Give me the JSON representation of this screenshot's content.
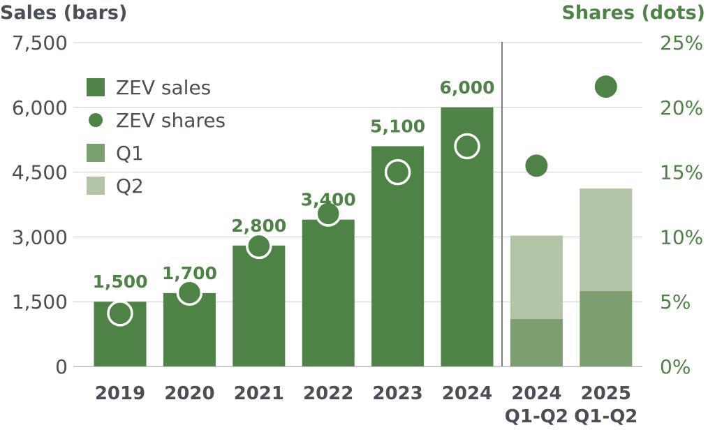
{
  "chart_data": {
    "type": "bar",
    "ylabel_left": "Sales (bars)",
    "ylabel_right": "Shares (dots)",
    "y_left_ticks": [
      "0",
      "1,500",
      "3,000",
      "4,500",
      "6,000",
      "7,500"
    ],
    "y_right_ticks": [
      "0%",
      "5%",
      "10%",
      "15%",
      "20%",
      "25%"
    ],
    "ylim_left": [
      0,
      7500
    ],
    "ylim_right": [
      0,
      25
    ],
    "categories": [
      {
        "line1": "2019",
        "line2": ""
      },
      {
        "line1": "2020",
        "line2": ""
      },
      {
        "line1": "2021",
        "line2": ""
      },
      {
        "line1": "2022",
        "line2": ""
      },
      {
        "line1": "2023",
        "line2": ""
      },
      {
        "line1": "2024",
        "line2": ""
      },
      {
        "line1": "2024",
        "line2": "Q1-Q2"
      },
      {
        "line1": "2025",
        "line2": "Q1-Q2"
      }
    ],
    "sales": [
      1500,
      1700,
      2800,
      3400,
      5100,
      6000,
      null,
      null
    ],
    "sales_labels": [
      "1,500",
      "1,700",
      "2,800",
      "3,400",
      "5,100",
      "6,000",
      "",
      ""
    ],
    "q1": [
      null,
      null,
      null,
      null,
      null,
      null,
      1100,
      1750
    ],
    "q2": [
      null,
      null,
      null,
      null,
      null,
      null,
      1930,
      2370
    ],
    "shares": [
      4.1,
      5.7,
      9.3,
      11.8,
      15.0,
      17.0,
      15.5,
      21.6
    ],
    "legend": [
      {
        "label": "ZEV sales",
        "marker": "square",
        "color": "#4e8346"
      },
      {
        "label": "ZEV shares",
        "marker": "circle",
        "color": "#4e8346"
      },
      {
        "label": "Q1",
        "marker": "square",
        "color": "#7b9f6e"
      },
      {
        "label": "Q2",
        "marker": "square",
        "color": "#b3c5a6"
      }
    ],
    "legend_position": "top-left",
    "grid": true,
    "colors": {
      "sales": "#4e8346",
      "q1": "#7b9f6e",
      "q2": "#b3c5a6",
      "label": "#4e8346",
      "axis_left_text": "#4a4f57",
      "axis_right_text": "#4e8346",
      "grid": "#cccccc"
    }
  }
}
